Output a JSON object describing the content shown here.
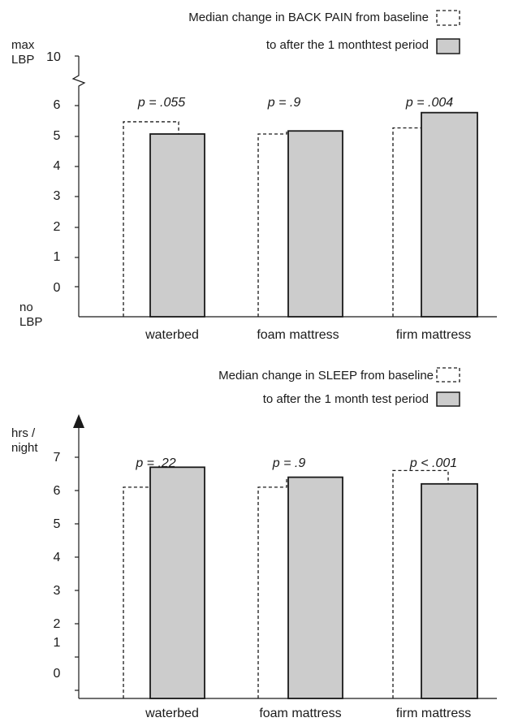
{
  "colors": {
    "bar_fill": "#cccccc",
    "stroke": "#1a1a1a",
    "background": "#ffffff"
  },
  "chart_data": [
    {
      "type": "bar",
      "legend": {
        "baseline_label": "Median change in BACK PAIN from baseline",
        "after_label": "to after the 1 monthtest period"
      },
      "ylabel_top": [
        "max",
        "LBP"
      ],
      "ylabel_bottom": [
        "no",
        "LBP"
      ],
      "y_axis_break": true,
      "y_ticks": [
        "10",
        "6",
        "5",
        "4",
        "3",
        "2",
        "1",
        "0"
      ],
      "categories": [
        "waterbed",
        "foam mattress",
        "firm mattress"
      ],
      "p_values": [
        "p = .055",
        "p = .9",
        "p = .004"
      ],
      "series": [
        {
          "name": "baseline",
          "style": "dashed outline",
          "values": [
            5.4,
            5.0,
            5.2
          ]
        },
        {
          "name": "after 1 month",
          "style": "grey filled",
          "values": [
            5.0,
            5.1,
            5.7
          ]
        }
      ],
      "ylim": [
        -1,
        6.5
      ]
    },
    {
      "type": "bar",
      "legend": {
        "baseline_label": "Median change in SLEEP from baseline",
        "after_label": "to after the 1 month test period"
      },
      "ylabel_top": [
        "hrs /",
        "night"
      ],
      "y_ticks": [
        "7",
        "6",
        "5",
        "4",
        "3",
        "2",
        "1",
        "0"
      ],
      "categories": [
        "waterbed",
        "foam mattress",
        "firm mattress"
      ],
      "p_values": [
        "p = .22",
        "p = .9",
        "p < .001"
      ],
      "series": [
        {
          "name": "baseline",
          "style": "dashed outline",
          "values": [
            6.1,
            6.1,
            6.6
          ]
        },
        {
          "name": "after 1 month",
          "style": "grey filled",
          "values": [
            6.7,
            6.4,
            6.2
          ]
        }
      ],
      "ylim": [
        -1,
        7.5
      ]
    }
  ]
}
